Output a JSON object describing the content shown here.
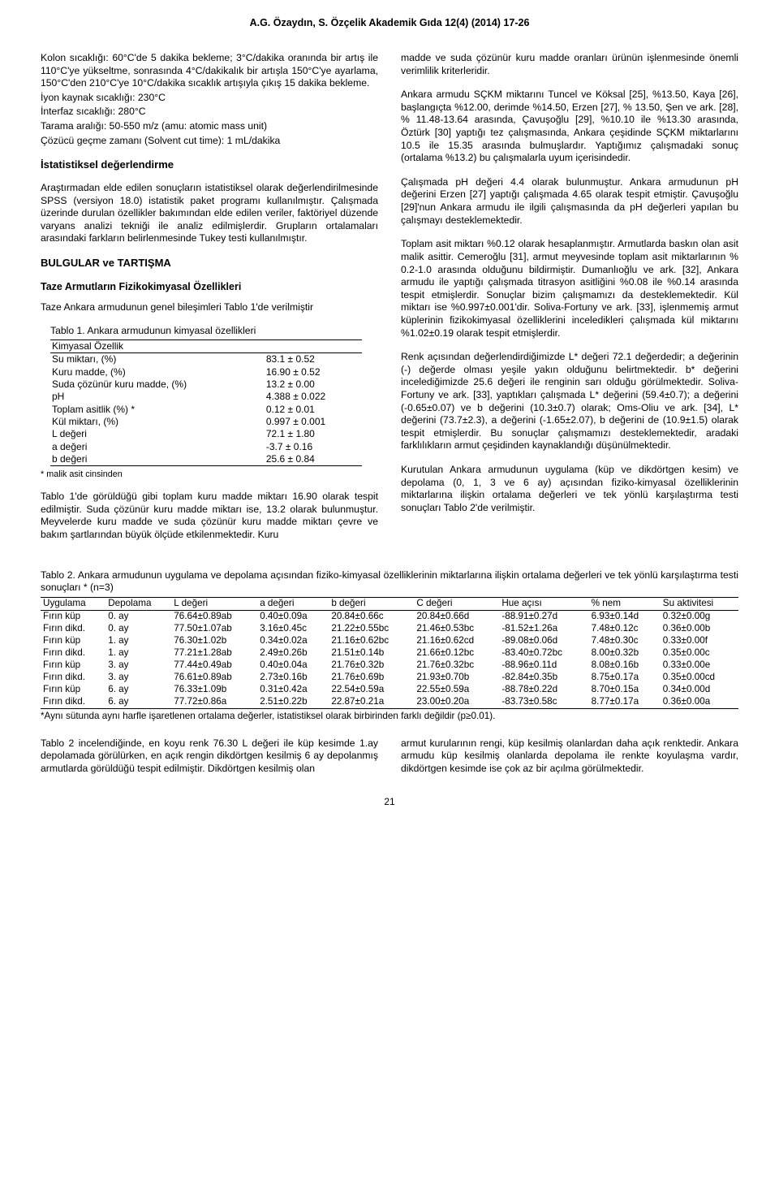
{
  "header": "A.G. Özaydın, S. Özçelik  Akademik Gıda 12(4) (2014) 17-26",
  "left": {
    "p1": "Kolon sıcaklığı: 60°C'de 5 dakika bekleme; 3°C/dakika oranında bir artış ile 110°C'ye yükseltme, sonrasında 4°C/dakikalık bir artışla 150°C'ye ayarlama, 150°C'den 210°C'ye 10°C/dakika sıcaklık artışıyla çıkış 15 dakika bekleme.",
    "l1": "İyon kaynak sıcaklığı: 230°C",
    "l2": "İnterfaz sıcaklığı: 280°C",
    "l3": "Tarama aralığı: 50-550 m/z (amu: atomic mass unit)",
    "l4": "Çözücü geçme zamanı (Solvent cut time): 1 mL/dakika",
    "h1": "İstatistiksel değerlendirme",
    "p2": "Araştırmadan elde edilen sonuçların istatistiksel olarak değerlendirilmesinde SPSS (versiyon 18.0) istatistik paket programı kullanılmıştır. Çalışmada üzerinde durulan özellikler bakımından elde edilen veriler, faktöriyel düzende varyans analizi tekniği ile analiz edilmişlerdir. Grupların ortalamaları arasındaki farkların belirlenmesinde Tukey testi kullanılmıştır.",
    "h2": "BULGULAR ve TARTIŞMA",
    "h3": "Taze Armutların Fizikokimyasal Özellikleri",
    "p3": "Taze Ankara armudunun genel bileşimleri Tablo 1'de verilmiştir",
    "tbl1_title": "Tablo 1. Ankara armudunun kimyasal özellikleri",
    "tbl1_head": "Kimyasal Özellik",
    "tbl1_rows": [
      [
        "Su miktarı, (%)",
        "83.1 ± 0.52"
      ],
      [
        "Kuru madde, (%)",
        "16.90 ± 0.52"
      ],
      [
        "Suda çözünür kuru madde, (%)",
        "13.2 ± 0.00"
      ],
      [
        "pH",
        "4.388 ± 0.022"
      ],
      [
        "Toplam asitlik (%) *",
        "0.12 ± 0.01"
      ],
      [
        "Kül miktarı, (%)",
        "0.997 ± 0.001"
      ],
      [
        "L değeri",
        "72.1 ± 1.80"
      ],
      [
        "a değeri",
        "-3.7 ± 0.16"
      ],
      [
        "b değeri",
        "25.6 ± 0.84"
      ]
    ],
    "tbl1_foot": "* malik asit cinsinden",
    "p4": "Tablo 1'de görüldüğü gibi toplam kuru madde miktarı 16.90 olarak tespit edilmiştir. Suda çözünür kuru madde miktarı ise, 13.2 olarak bulunmuştur. Meyvelerde kuru madde ve suda çözünür kuru madde miktarı çevre ve bakım şartlarından büyük ölçüde etkilenmektedir. Kuru"
  },
  "right": {
    "p1": "madde ve suda çözünür kuru madde oranları ürünün işlenmesinde önemli verimlilik kriterleridir.",
    "p2": "Ankara armudu SÇKM miktarını Tuncel ve Köksal [25], %13.50, Kaya [26], başlangıçta %12.00, derimde %14.50, Erzen [27], % 13.50, Şen ve ark. [28], % 11.48-13.64 arasında, Çavuşoğlu [29], %10.10 ile %13.30 arasında, Öztürk [30] yaptığı tez çalışmasında, Ankara çeşidinde SÇKM miktarlarını 10.5 ile 15.35 arasında bulmuşlardır. Yaptığımız çalışmadaki sonuç (ortalama %13.2) bu çalışmalarla uyum içerisindedir.",
    "p3": "Çalışmada pH değeri 4.4 olarak bulunmuştur. Ankara armudunun pH değerini Erzen [27] yaptığı çalışmada 4.65 olarak tespit etmiştir. Çavuşoğlu [29]'nun Ankara armudu ile ilgili çalışmasında da pH değerleri yapılan bu çalışmayı desteklemektedir.",
    "p4": "Toplam asit miktarı %0.12 olarak hesaplanmıştır. Armutlarda baskın olan asit malik asittir. Cemeroğlu [31], armut meyvesinde toplam asit miktarlarının % 0.2-1.0 arasında olduğunu bildirmiştir. Dumanlıoğlu ve ark. [32], Ankara armudu ile yaptığı çalışmada titrasyon asitliğini %0.08 ile %0.14 arasında tespit etmişlerdir. Sonuçlar bizim çalışmamızı da desteklemektedir. Kül miktarı ise %0.997±0.001'dir. Soliva-Fortuny ve ark. [33], işlenmemiş armut küplerinin fizikokimyasal özelliklerini inceledikleri çalışmada kül miktarını %1.02±0.19 olarak tespit etmişlerdir.",
    "p5": "Renk açısından değerlendirdiğimizde L* değeri 72.1 değerdedir; a değerinin (-) değerde olması yeşile yakın olduğunu belirtmektedir. b* değerini incelediğimizde 25.6 değeri ile renginin sarı olduğu görülmektedir. Soliva-Fortuny ve ark. [33], yaptıkları çalışmada L* değerini (59.4±0.7); a değerini (-0.65±0.07) ve b değerini (10.3±0.7) olarak; Oms-Oliu ve ark. [34], L* değerini (73.7±2.3), a değerini (-1.65±2.07), b değerini de (10.9±1.5) olarak tespit etmişlerdir. Bu sonuçlar çalışmamızı desteklemektedir, aradaki farklılıkların armut çeşidinden kaynaklandığı düşünülmektedir.",
    "p6": "Kurutulan Ankara armudunun uygulama (küp ve dikdörtgen kesim) ve depolama (0, 1, 3 ve 6 ay) açısından fiziko-kimyasal özelliklerinin miktarlarına ilişkin ortalama değerleri ve tek yönlü karşılaştırma testi sonuçları Tablo 2'de verilmiştir."
  },
  "tbl2_caption": "Tablo 2. Ankara armudunun uygulama ve depolama açısından fiziko-kimyasal özelliklerinin miktarlarına ilişkin ortalama değerleri ve tek yönlü karşılaştırma testi sonuçları * (n=3)",
  "tbl2_headers": [
    "Uygulama",
    "Depolama",
    "L değeri",
    "a değeri",
    "b değeri",
    "C değeri",
    "Hue açısı",
    "% nem",
    "Su aktivitesi"
  ],
  "tbl2_rows": [
    [
      "Fırın küp",
      "0. ay",
      "76.64±0.89ab",
      "0.40±0.09a",
      "20.84±0.66c",
      "20.84±0.66d",
      "-88.91±0.27d",
      "6.93±0.14d",
      "0.32±0.00g"
    ],
    [
      "Fırın dikd.",
      "0. ay",
      "77.50±1.07ab",
      "3.16±0.45c",
      "21.22±0.55bc",
      "21.46±0.53bc",
      "-81.52±1.26a",
      "7.48±0.12c",
      "0.36±0.00b"
    ],
    [
      "Fırın küp",
      "1. ay",
      "76.30±1.02b",
      "0.34±0.02a",
      "21.16±0.62bc",
      "21.16±0.62cd",
      "-89.08±0.06d",
      "7.48±0.30c",
      "0.33±0.00f"
    ],
    [
      "Fırın dikd.",
      "1. ay",
      "77.21±1.28ab",
      "2.49±0.26b",
      "21.51±0.14b",
      "21.66±0.12bc",
      "-83.40±0.72bc",
      "8.00±0.32b",
      "0.35±0.00c"
    ],
    [
      "Fırın küp",
      "3. ay",
      "77.44±0.49ab",
      "0.40±0.04a",
      "21.76±0.32b",
      "21.76±0.32bc",
      "-88.96±0.11d",
      "8.08±0.16b",
      "0.33±0.00e"
    ],
    [
      "Fırın dikd.",
      "3. ay",
      "76.61±0.89ab",
      "2.73±0.16b",
      "21.76±0.69b",
      "21.93±0.70b",
      "-82.84±0.35b",
      "8.75±0.17a",
      "0.35±0.00cd"
    ],
    [
      "Fırın küp",
      "6. ay",
      "76.33±1.09b",
      "0.31±0.42a",
      "22.54±0.59a",
      "22.55±0.59a",
      "-88.78±0.22d",
      "8.70±0.15a",
      "0.34±0.00d"
    ],
    [
      "Fırın dikd.",
      "6. ay",
      "77.72±0.86a",
      "2.51±0.22b",
      "22.87±0.21a",
      "23.00±0.20a",
      "-83.73±0.58c",
      "8.77±0.17a",
      "0.36±0.00a"
    ]
  ],
  "tbl2_note": "*Aynı sütunda aynı harfle işaretlenen ortalama değerler, istatistiksel olarak birbirinden farklı değildir (p≥0.01).",
  "bottom_left": "Tablo 2 incelendiğinde, en koyu renk 76.30 L değeri ile küp kesimde 1.ay depolamada görülürken, en açık rengin dikdörtgen kesilmiş 6 ay depolanmış armutlarda görüldüğü tespit edilmiştir. Dikdörtgen kesilmiş olan",
  "bottom_right": "armut kurularının rengi, küp kesilmiş olanlardan daha açık renktedir. Ankara armudu küp kesilmiş olanlarda depolama ile renkte koyulaşma vardır, dikdörtgen kesimde ise çok az bir açılma görülmektedir.",
  "page_num": "21"
}
